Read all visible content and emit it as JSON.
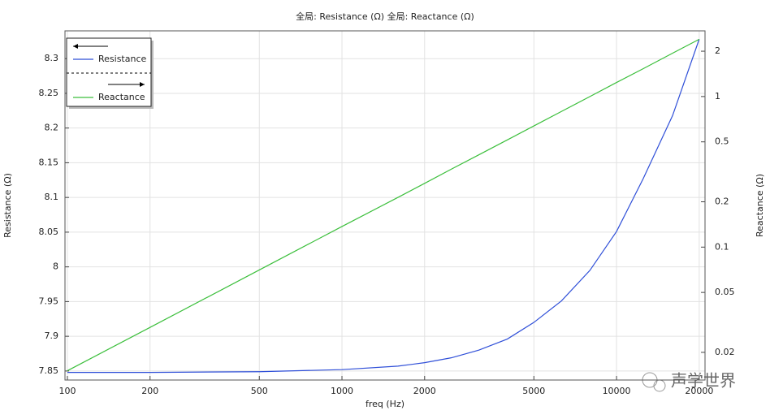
{
  "chart_data": {
    "type": "line",
    "title": "全局: Resistance (Ω)  全局: Reactance (Ω)",
    "xlabel": "freq (Hz)",
    "ylabel": "Resistance (Ω)",
    "y2label": "Reactance (Ω)",
    "watermark": "声学世界",
    "x": [
      100,
      200,
      500,
      1000,
      1600,
      2000,
      2500,
      3150,
      4000,
      5000,
      6300,
      8000,
      10000,
      12500,
      16000,
      20000
    ],
    "series": [
      {
        "name": "Resistance",
        "color": "#2f4fd8",
        "values": [
          7.848,
          7.848,
          7.849,
          7.852,
          7.857,
          7.862,
          7.869,
          7.88,
          7.896,
          7.92,
          7.951,
          7.995,
          8.051,
          8.127,
          8.218,
          8.328
        ]
      },
      {
        "name": "Reactance",
        "color": "#3cbf3c",
        "axis": "y2",
        "values": [
          0.0151,
          0.0293,
          0.0705,
          0.137,
          0.214,
          0.265,
          0.329,
          0.41,
          0.515,
          0.638,
          0.796,
          1.0,
          1.24,
          1.53,
          1.94,
          2.4
        ]
      }
    ],
    "xlim": [
      98,
      21000
    ],
    "xticks": [
      100,
      200,
      500,
      1000,
      2000,
      5000,
      10000,
      20000
    ],
    "xlog": true,
    "ylim": [
      7.837,
      8.34
    ],
    "yticks": [
      7.85,
      7.9,
      7.95,
      8,
      8.05,
      8.1,
      8.15,
      8.2,
      8.25,
      8.3
    ],
    "y2lim": [
      0.0131,
      2.73
    ],
    "y2ticks": [
      0.02,
      0.05,
      0.1,
      0.2,
      0.5,
      1,
      2
    ],
    "y2log": true,
    "grid": true,
    "legend": "top-left"
  }
}
